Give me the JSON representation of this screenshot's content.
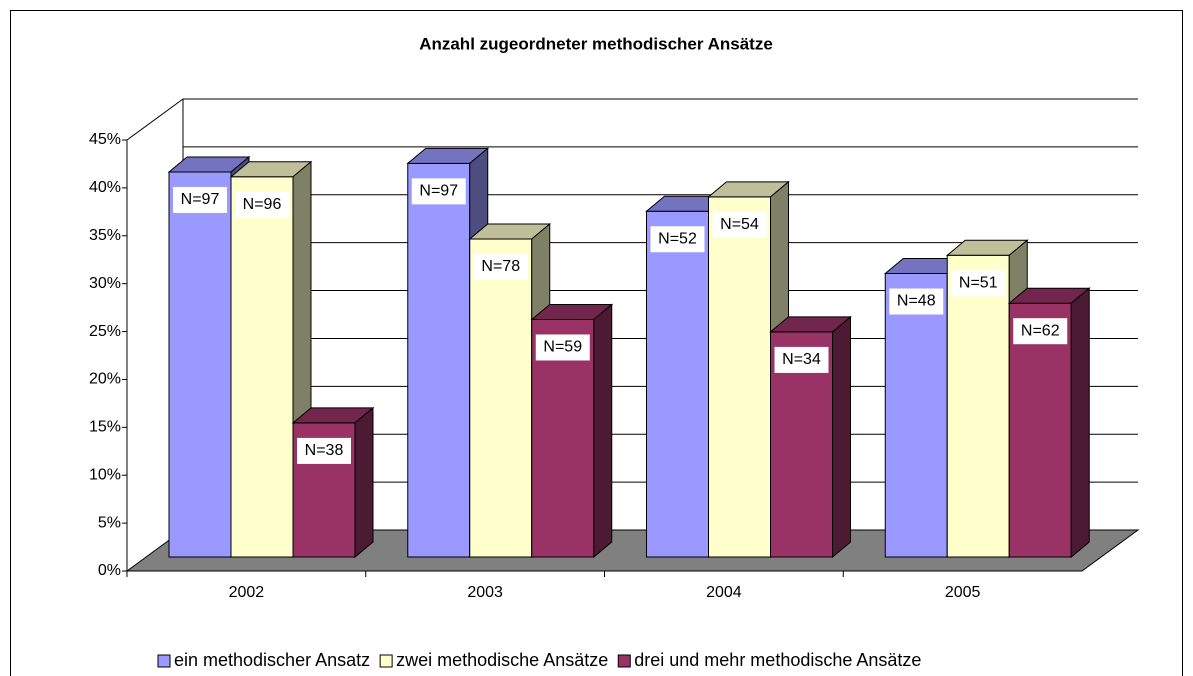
{
  "chart_data": {
    "type": "bar3d",
    "title": "Anzahl zugeordneter methodischer Ansätze",
    "categories": [
      "2002",
      "2003",
      "2004",
      "2005"
    ],
    "series": [
      {
        "name": "ein methodischer Ansatz",
        "color": "#9999ff",
        "values": [
          40.2,
          41.1,
          36.1,
          29.6
        ],
        "annotations": [
          "N=97",
          "N=97",
          "N=52",
          "N=48"
        ]
      },
      {
        "name": "zwei methodische Ansätze",
        "color": "#ffffcc",
        "values": [
          39.7,
          33.2,
          37.6,
          31.5
        ],
        "annotations": [
          "N=96",
          "N=78",
          "N=54",
          "N=51"
        ]
      },
      {
        "name": "drei und mehr methodische Ansätze",
        "color": "#993366",
        "values": [
          14.0,
          24.8,
          23.5,
          26.5
        ],
        "annotations": [
          "N=38",
          "N=59",
          "N=34",
          "N=62"
        ]
      }
    ],
    "ylim": [
      0,
      45
    ],
    "yticks": [
      {
        "value": 0,
        "label": "0%"
      },
      {
        "value": 5,
        "label": "5%"
      },
      {
        "value": 10,
        "label": "10%"
      },
      {
        "value": 15,
        "label": "15%"
      },
      {
        "value": 20,
        "label": "20%"
      },
      {
        "value": 25,
        "label": "25%"
      },
      {
        "value": 30,
        "label": "30%"
      },
      {
        "value": 35,
        "label": "35%"
      },
      {
        "value": 40,
        "label": "40%"
      },
      {
        "value": 45,
        "label": "45%"
      }
    ],
    "grid": true,
    "legend": "bottom"
  }
}
